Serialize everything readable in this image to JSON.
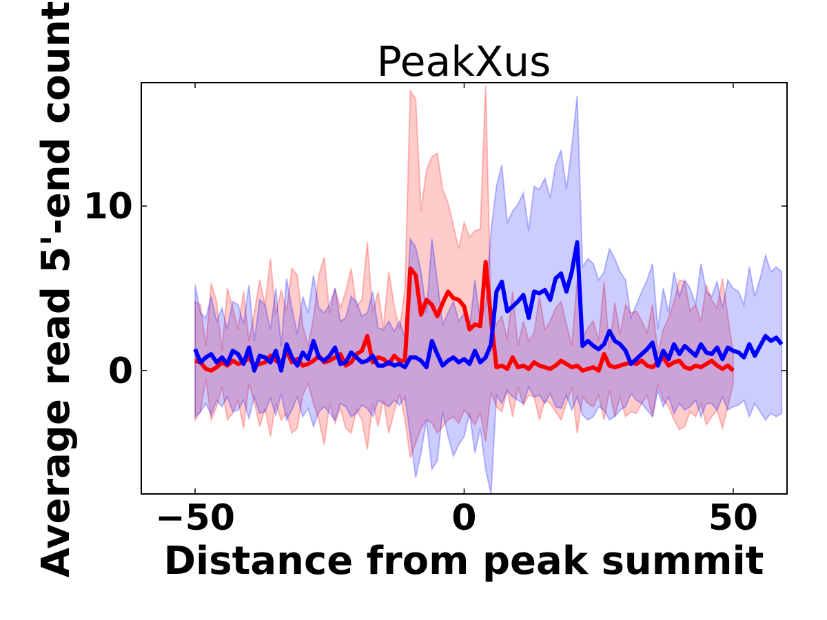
{
  "chart_data": {
    "type": "line",
    "title": "PeakXus",
    "xlabel": "Distance from peak summit",
    "ylabel": "Average read 5'-end count",
    "xlim": [
      -60,
      60
    ],
    "ylim": [
      -7.5,
      17.5
    ],
    "xticks": [
      -50,
      0,
      50
    ],
    "xtick_labels": [
      "−50",
      "0",
      "50"
    ],
    "yticks": [
      0,
      10
    ],
    "ytick_labels": [
      "0",
      "10"
    ],
    "grid": false,
    "legend": "none",
    "x_start": -50,
    "x_step": 1,
    "series": [
      {
        "color": "#ff0000",
        "band_color": "#ff0000",
        "values": [
          0.6,
          0.5,
          0.1,
          0.0,
          0.2,
          0.5,
          0.3,
          0.6,
          0.4,
          0.5,
          0.8,
          0.3,
          0.4,
          0.5,
          0.9,
          0.6,
          0.4,
          1.2,
          0.5,
          0.7,
          0.3,
          0.4,
          0.6,
          0.9,
          0.5,
          0.6,
          0.8,
          1.0,
          0.3,
          0.5,
          1.0,
          1.2,
          2.1,
          0.5,
          0.8,
          0.7,
          0.4,
          0.9,
          0.6,
          0.6,
          6.2,
          5.8,
          3.4,
          4.3,
          4.0,
          3.3,
          4.1,
          4.8,
          4.4,
          4.3,
          3.9,
          2.5,
          2.8,
          2.7,
          6.6,
          3.1,
          0.2,
          0.3,
          0.1,
          0.8,
          0.2,
          0.3,
          0.1,
          0.5,
          0.3,
          0.2,
          0.1,
          0.3,
          0.6,
          0.4,
          0.2,
          0.3,
          0.0,
          0.1,
          0.2,
          0.0,
          1.0,
          0.3,
          0.2,
          0.3,
          0.4,
          0.5,
          0.4,
          0.6,
          0.3,
          0.2,
          0.5,
          0.8,
          0.3,
          0.5,
          0.6,
          0.2,
          0.1,
          0.3,
          0.2,
          0.4,
          0.6,
          0.3,
          0.1,
          0.3,
          0.0
        ],
        "upper": [
          4.2,
          4.0,
          1.5,
          5.3,
          4.2,
          1.2,
          5.0,
          3.8,
          2.5,
          4.8,
          1.8,
          3.5,
          5.5,
          4.0,
          6.8,
          3.4,
          4.9,
          3.6,
          6.2,
          5.8,
          2.7,
          1.5,
          3.2,
          5.8,
          6.9,
          3.4,
          5.0,
          3.8,
          4.8,
          6.2,
          3.9,
          4.3,
          7.8,
          3.5,
          4.8,
          2.6,
          6.0,
          3.9,
          2.5,
          5.0,
          17.0,
          16.5,
          9.7,
          12.2,
          13.0,
          13.2,
          11.0,
          10.2,
          8.8,
          7.4,
          9.0,
          8.1,
          8.5,
          8.6,
          17.3,
          3.6,
          2.8,
          3.3,
          1.9,
          4.8,
          1.5,
          3.0,
          1.8,
          2.3,
          4.5,
          2.5,
          3.0,
          3.8,
          4.2,
          2.8,
          1.5,
          5.5,
          2.0,
          2.6,
          3.0,
          1.8,
          5.4,
          1.3,
          4.1,
          2.2,
          4.0,
          3.5,
          3.6,
          3.0,
          2.3,
          4.0,
          1.0,
          2.5,
          3.2,
          4.2,
          5.5,
          5.4,
          3.6,
          4.0,
          3.0,
          5.2,
          4.3,
          3.8,
          5.6,
          3.3,
          1.0
        ],
        "lower": [
          -3.0,
          -2.5,
          -0.5,
          -3.0,
          -2.2,
          -1.0,
          -3.0,
          -2.6,
          -1.8,
          -3.5,
          -0.8,
          -1.9,
          -3.4,
          -2.3,
          -4.0,
          -2.0,
          -3.0,
          -2.6,
          -3.8,
          -3.5,
          -1.5,
          -0.8,
          -2.0,
          -3.0,
          -4.5,
          -2.0,
          -3.2,
          -2.3,
          -3.5,
          -3.8,
          -2.4,
          -3.0,
          -4.8,
          -2.0,
          -3.4,
          -1.8,
          -3.8,
          -2.5,
          -1.4,
          -3.0,
          -5.3,
          -4.4,
          -3.5,
          -3.0,
          -3.2,
          -3.8,
          -3.4,
          -3.0,
          -2.8,
          -3.2,
          -2.4,
          -2.8,
          -3.3,
          -2.6,
          -4.3,
          -1.3,
          -2.2,
          -2.5,
          -1.2,
          -2.8,
          -1.0,
          -2.1,
          -1.5,
          -1.6,
          -3.0,
          -1.8,
          -2.0,
          -2.5,
          -3.0,
          -2.0,
          -1.0,
          -3.8,
          -1.6,
          -2.0,
          -2.2,
          -1.5,
          -3.0,
          -1.2,
          -2.8,
          -1.6,
          -2.8,
          -2.5,
          -2.6,
          -2.0,
          -1.5,
          -2.8,
          -0.8,
          -1.8,
          -2.2,
          -3.0,
          -3.6,
          -3.4,
          -2.5,
          -2.8,
          -2.0,
          -3.3,
          -2.8,
          -2.4,
          -3.5,
          -2.2,
          -0.8
        ]
      },
      {
        "color": "#0000ff",
        "band_color": "#0000ff",
        "values": [
          1.3,
          0.5,
          0.8,
          1.0,
          0.5,
          0.8,
          0.4,
          1.2,
          1.0,
          0.4,
          1.4,
          0.0,
          0.9,
          0.8,
          0.5,
          1.2,
          0.0,
          1.6,
          0.8,
          0.3,
          1.1,
          0.7,
          1.8,
          0.8,
          0.6,
          0.9,
          1.4,
          0.4,
          0.5,
          1.1,
          0.8,
          0.5,
          0.6,
          0.9,
          0.3,
          0.3,
          0.5,
          0.3,
          0.4,
          0.2,
          0.8,
          0.8,
          0.6,
          0.2,
          1.8,
          1.0,
          0.3,
          0.6,
          0.8,
          0.5,
          0.7,
          0.4,
          1.2,
          0.5,
          0.8,
          1.6,
          4.8,
          5.4,
          3.6,
          3.9,
          4.2,
          4.6,
          3.2,
          4.8,
          4.7,
          4.9,
          4.3,
          5.6,
          5.9,
          4.8,
          6.0,
          7.8,
          1.5,
          1.8,
          1.5,
          1.3,
          1.6,
          2.4,
          1.8,
          1.6,
          1.2,
          0.4,
          0.7,
          1.0,
          1.3,
          1.7,
          0.3,
          1.2,
          0.7,
          1.6,
          1.0,
          1.5,
          1.2,
          0.9,
          1.6,
          1.1,
          1.0,
          1.4,
          0.7,
          1.4,
          1.2,
          1.1,
          0.8,
          1.6,
          0.9,
          1.5,
          2.1,
          1.8,
          2.0,
          1.6
        ],
        "upper": [
          5.2,
          3.5,
          3.2,
          4.5,
          3.0,
          3.8,
          2.5,
          4.2,
          4.0,
          2.8,
          5.2,
          1.8,
          4.3,
          4.0,
          2.5,
          5.0,
          1.5,
          5.6,
          3.8,
          2.2,
          4.5,
          3.5,
          5.8,
          3.8,
          3.5,
          4.0,
          5.0,
          3.0,
          3.2,
          4.5,
          4.2,
          3.3,
          3.5,
          4.8,
          2.6,
          2.5,
          3.0,
          2.4,
          3.0,
          2.0,
          8.0,
          7.5,
          6.0,
          3.5,
          8.0,
          5.5,
          2.8,
          3.5,
          4.2,
          3.0,
          3.5,
          2.6,
          5.5,
          3.0,
          4.0,
          8.5,
          11.2,
          12.5,
          9.0,
          9.7,
          10.1,
          10.8,
          8.5,
          11.2,
          11.0,
          11.7,
          10.5,
          12.5,
          13.4,
          11.0,
          13.6,
          16.7,
          6.3,
          6.8,
          6.5,
          5.5,
          6.0,
          7.4,
          6.8,
          6.0,
          5.5,
          3.2,
          4.0,
          4.8,
          5.5,
          6.5,
          2.5,
          5.0,
          3.5,
          6.0,
          4.5,
          5.5,
          5.0,
          4.0,
          6.5,
          4.8,
          4.5,
          5.4,
          3.8,
          5.5,
          5.0,
          4.8,
          4.0,
          6.3,
          4.5,
          5.6,
          7.0,
          6.0,
          6.3,
          6.0
        ],
        "lower": [
          -2.8,
          -2.5,
          -2.0,
          -2.7,
          -1.8,
          -2.2,
          -1.6,
          -2.5,
          -2.4,
          -1.8,
          -2.9,
          -1.6,
          -2.6,
          -2.5,
          -1.7,
          -2.7,
          -1.4,
          -3.0,
          -2.4,
          -1.6,
          -2.8,
          -2.3,
          -3.4,
          -2.5,
          -2.2,
          -2.6,
          -3.0,
          -2.0,
          -2.2,
          -2.8,
          -2.6,
          -2.1,
          -2.3,
          -2.8,
          -1.8,
          -2.0,
          -2.2,
          -1.8,
          -2.1,
          -1.6,
          -4.0,
          -6.5,
          -5.0,
          -3.0,
          -6.0,
          -5.5,
          -2.5,
          -4.0,
          -5.2,
          -4.5,
          -4.0,
          -2.6,
          -5.0,
          -3.5,
          -6.0,
          -7.5,
          -1.5,
          -2.0,
          -1.2,
          -1.6,
          -1.8,
          -2.0,
          -1.0,
          -1.6,
          -1.5,
          -2.0,
          -1.4,
          -2.2,
          -2.3,
          -1.5,
          -2.4,
          -1.6,
          -2.7,
          -3.0,
          -2.8,
          -2.2,
          -2.4,
          -3.0,
          -2.8,
          -2.4,
          -2.2,
          -1.4,
          -1.8,
          -2.0,
          -2.4,
          -2.8,
          -1.2,
          -2.2,
          -1.6,
          -2.6,
          -2.0,
          -2.4,
          -2.2,
          -1.8,
          -2.8,
          -2.0,
          -2.0,
          -2.4,
          -1.6,
          -2.4,
          -2.2,
          -2.1,
          -1.8,
          -2.8,
          -2.0,
          -2.5,
          -3.0,
          -2.6,
          -2.8,
          -2.6
        ]
      }
    ]
  }
}
